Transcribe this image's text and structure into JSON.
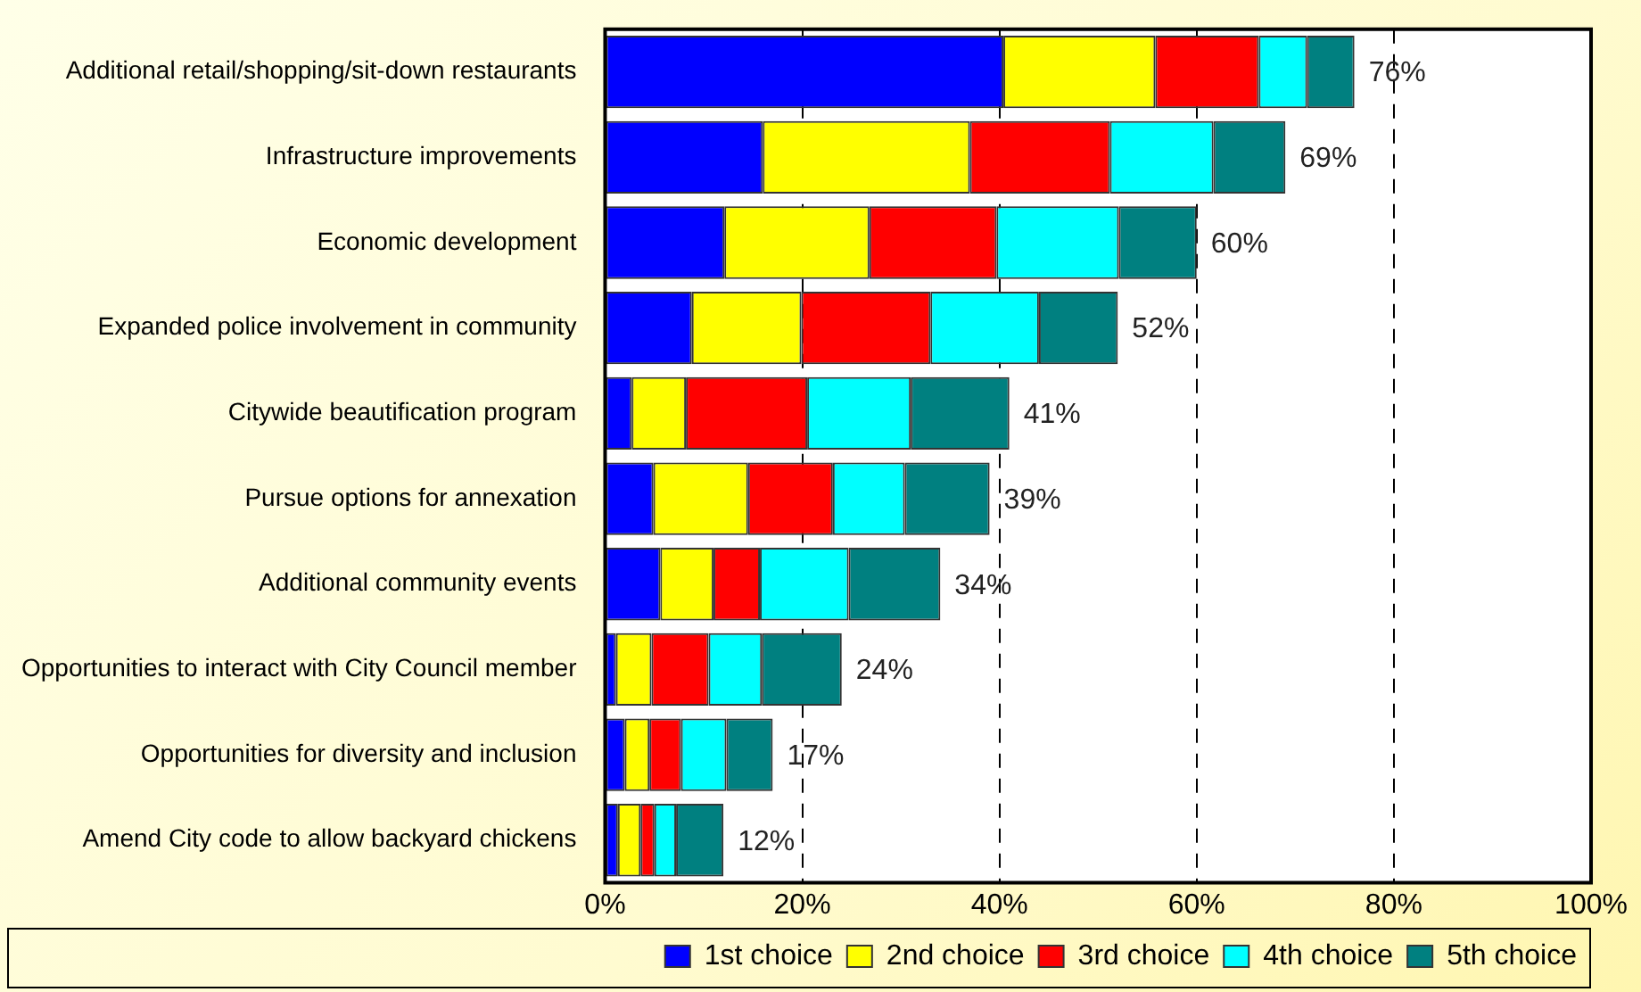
{
  "chart_data": {
    "type": "bar",
    "orientation": "horizontal",
    "stacked": true,
    "categories": [
      "Additional retail/shopping/sit-down restaurants",
      "Infrastructure improvements",
      "Economic development",
      "Expanded police involvement in community",
      "Citywide beautification program",
      "Pursue options for annexation",
      "Additional community events",
      "Opportunities to interact with City Council member",
      "Opportunities for diversity and inclusion",
      "Amend City code to allow backyard chickens"
    ],
    "series": [
      {
        "name": "1st choice",
        "color": "#0000ff",
        "values": [
          40.4,
          16.0,
          12.1,
          8.8,
          2.7,
          4.9,
          5.6,
          1.1,
          2.0,
          1.3
        ]
      },
      {
        "name": "2nd choice",
        "color": "#ffff00",
        "values": [
          15.4,
          21.0,
          14.7,
          11.1,
          5.5,
          9.6,
          5.4,
          3.6,
          2.5,
          2.3
        ]
      },
      {
        "name": "3rd choice",
        "color": "#ff0000",
        "values": [
          10.5,
          14.2,
          12.9,
          13.1,
          12.3,
          8.6,
          4.7,
          5.8,
          3.2,
          1.4
        ]
      },
      {
        "name": "4th choice",
        "color": "#00ffff",
        "values": [
          4.9,
          10.5,
          12.4,
          11.0,
          10.5,
          7.3,
          9.0,
          5.4,
          4.6,
          2.2
        ]
      },
      {
        "name": "5th choice",
        "color": "#008080",
        "values": [
          4.8,
          7.3,
          7.9,
          8.0,
          10.0,
          8.6,
          9.3,
          8.1,
          4.7,
          4.8
        ]
      }
    ],
    "totals": [
      "76%",
      "69%",
      "60%",
      "52%",
      "41%",
      "39%",
      "34%",
      "24%",
      "17%",
      "12%"
    ],
    "xlim": [
      0,
      100
    ],
    "xticks": [
      {
        "value": 0,
        "label": "0%"
      },
      {
        "value": 20,
        "label": "20%"
      },
      {
        "value": 40,
        "label": "40%"
      },
      {
        "value": 60,
        "label": "60%"
      },
      {
        "value": 80,
        "label": "80%"
      },
      {
        "value": 100,
        "label": "100%"
      }
    ],
    "grid": "x",
    "legend": "bottom right"
  }
}
